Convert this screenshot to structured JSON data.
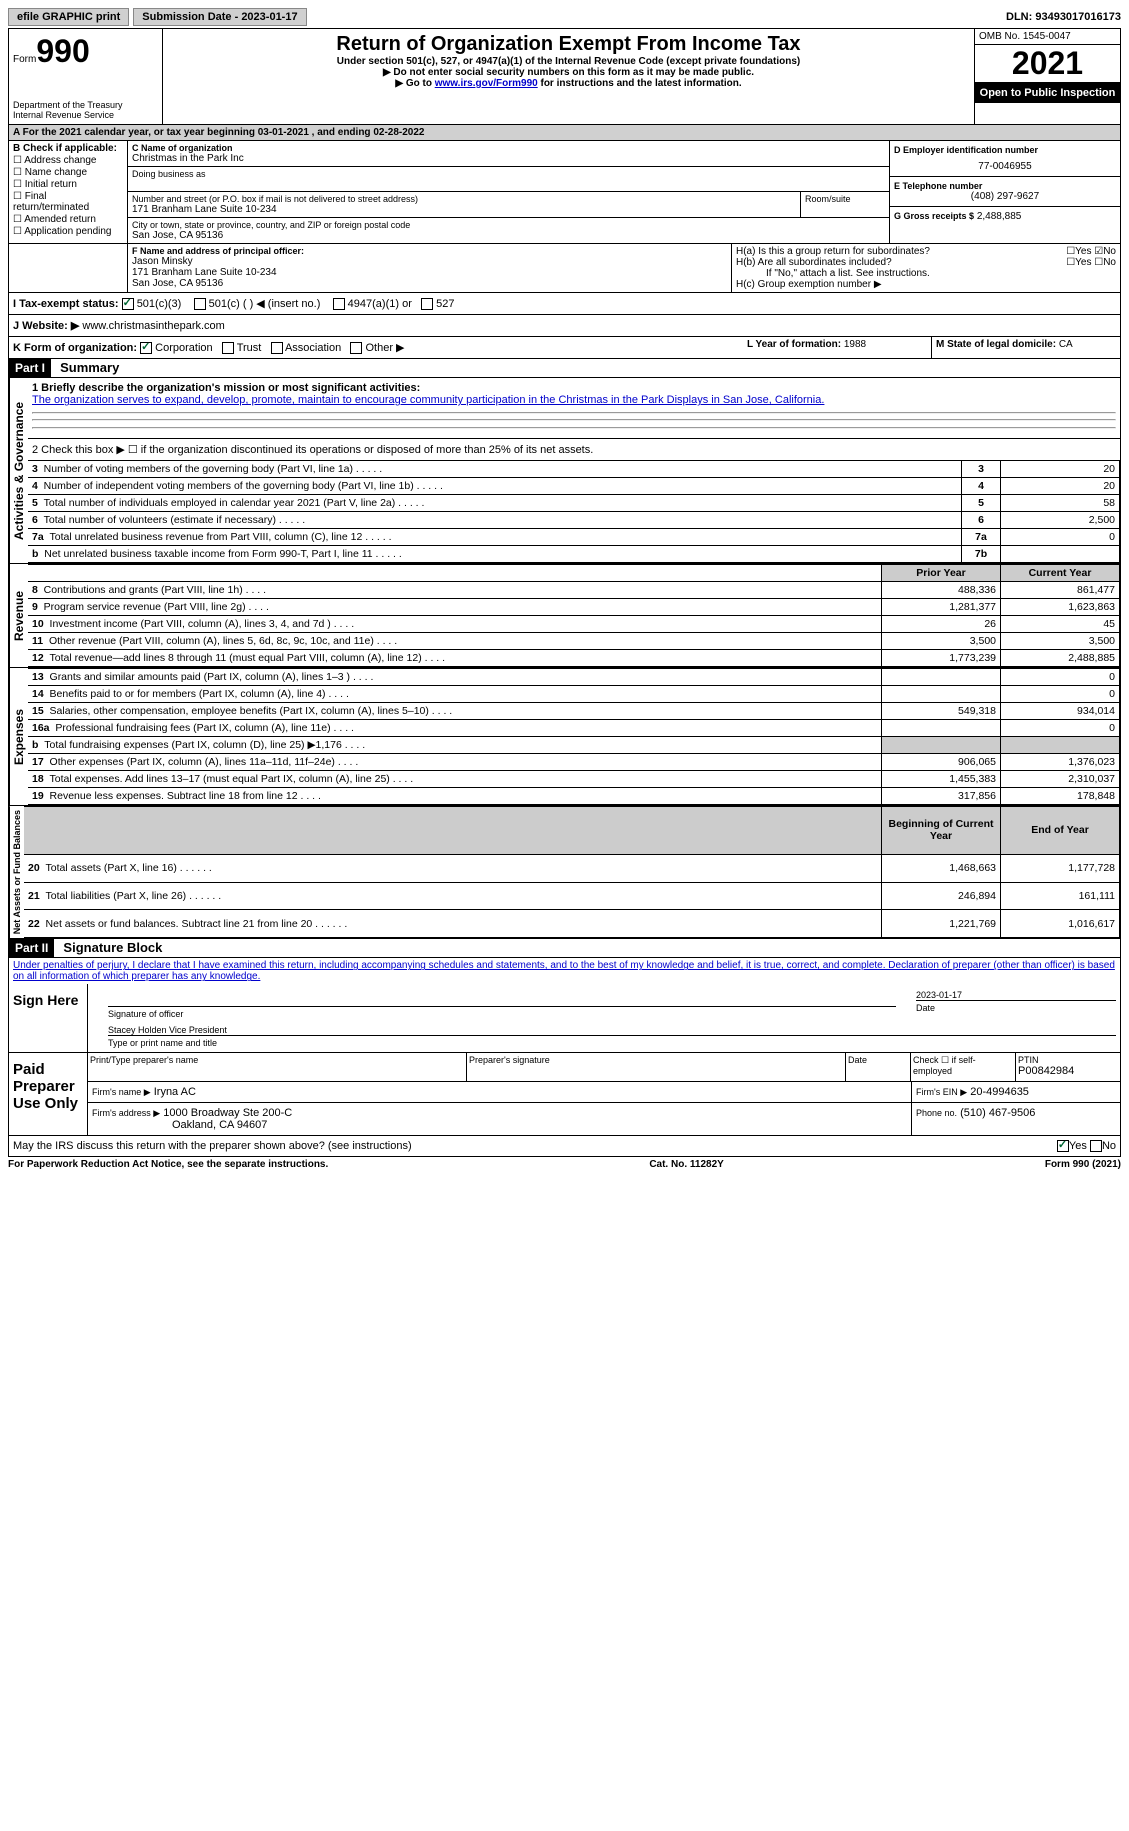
{
  "topbar": {
    "efile": "efile GRAPHIC print",
    "submission_label": "Submission Date - 2023-01-17",
    "dln_label": "DLN: 93493017016173"
  },
  "header": {
    "form_word": "Form",
    "form_num": "990",
    "dept": "Department of the Treasury",
    "irs": "Internal Revenue Service",
    "title": "Return of Organization Exempt From Income Tax",
    "subtitle": "Under section 501(c), 527, or 4947(a)(1) of the Internal Revenue Code (except private foundations)",
    "warn": "▶ Do not enter social security numbers on this form as it may be made public.",
    "goto_pre": "▶ Go to ",
    "goto_link": "www.irs.gov/Form990",
    "goto_post": " for instructions and the latest information.",
    "omb": "OMB No. 1545-0047",
    "year": "2021",
    "open": "Open to Public Inspection"
  },
  "line_a": "A For the 2021 calendar year, or tax year beginning 03-01-2021   , and ending 02-28-2022",
  "box_b": {
    "label": "B Check if applicable:",
    "items": [
      "Address change",
      "Name change",
      "Initial return",
      "Final return/terminated",
      "Amended return",
      "Application pending"
    ]
  },
  "box_c": {
    "name_label": "C Name of organization",
    "name": "Christmas in the Park Inc",
    "dba_label": "Doing business as",
    "addr_label": "Number and street (or P.O. box if mail is not delivered to street address)",
    "room_label": "Room/suite",
    "addr": "171 Branham Lane Suite 10-234",
    "city_label": "City or town, state or province, country, and ZIP or foreign postal code",
    "city": "San Jose, CA  95136"
  },
  "box_d": {
    "label": "D Employer identification number",
    "value": "77-0046955"
  },
  "box_e": {
    "label": "E Telephone number",
    "value": "(408) 297-9627"
  },
  "box_g": {
    "label": "G Gross receipts $",
    "value": "2,488,885"
  },
  "box_f": {
    "label": "F  Name and address of principal officer:",
    "name": "Jason Minsky",
    "addr1": "171 Branham Lane Suite 10-234",
    "addr2": "San Jose, CA  95136"
  },
  "box_h": {
    "ha": "H(a)  Is this a group return for subordinates?",
    "hb": "H(b)  Are all subordinates included?",
    "hb_note": "If \"No,\" attach a list. See instructions.",
    "hc": "H(c)  Group exemption number ▶"
  },
  "box_i": {
    "label": "I  Tax-exempt status:",
    "opts": [
      "501(c)(3)",
      "501(c) (  ) ◀ (insert no.)",
      "4947(a)(1) or",
      "527"
    ]
  },
  "box_j": {
    "label": "J  Website: ▶",
    "value": "www.christmasinthepark.com"
  },
  "box_k": {
    "label": "K Form of organization:",
    "opts": [
      "Corporation",
      "Trust",
      "Association",
      "Other ▶"
    ]
  },
  "box_l": {
    "label": "L Year of formation:",
    "value": "1988"
  },
  "box_m": {
    "label": "M State of legal domicile:",
    "value": "CA"
  },
  "part1": {
    "label": "Part I",
    "title": "Summary",
    "line1_label": "1  Briefly describe the organization's mission or most significant activities:",
    "line1_text": "The organization serves to expand, develop, promote, maintain to encourage community participation in the Christmas in the Park Displays in San Jose, California.",
    "line2": "2  Check this box ▶ ☐  if the organization discontinued its operations or disposed of more than 25% of its net assets.",
    "rows_gov": [
      {
        "n": "3",
        "t": "Number of voting members of the governing body (Part VI, line 1a)",
        "box": "3",
        "v": "20"
      },
      {
        "n": "4",
        "t": "Number of independent voting members of the governing body (Part VI, line 1b)",
        "box": "4",
        "v": "20"
      },
      {
        "n": "5",
        "t": "Total number of individuals employed in calendar year 2021 (Part V, line 2a)",
        "box": "5",
        "v": "58"
      },
      {
        "n": "6",
        "t": "Total number of volunteers (estimate if necessary)",
        "box": "6",
        "v": "2,500"
      },
      {
        "n": "7a",
        "t": "Total unrelated business revenue from Part VIII, column (C), line 12",
        "box": "7a",
        "v": "0"
      },
      {
        "n": "b",
        "t": "Net unrelated business taxable income from Form 990-T, Part I, line 11",
        "box": "7b",
        "v": ""
      }
    ],
    "col_prior": "Prior Year",
    "col_current": "Current Year",
    "rows_rev": [
      {
        "n": "8",
        "t": "Contributions and grants (Part VIII, line 1h)",
        "p": "488,336",
        "c": "861,477"
      },
      {
        "n": "9",
        "t": "Program service revenue (Part VIII, line 2g)",
        "p": "1,281,377",
        "c": "1,623,863"
      },
      {
        "n": "10",
        "t": "Investment income (Part VIII, column (A), lines 3, 4, and 7d )",
        "p": "26",
        "c": "45"
      },
      {
        "n": "11",
        "t": "Other revenue (Part VIII, column (A), lines 5, 6d, 8c, 9c, 10c, and 11e)",
        "p": "3,500",
        "c": "3,500"
      },
      {
        "n": "12",
        "t": "Total revenue—add lines 8 through 11 (must equal Part VIII, column (A), line 12)",
        "p": "1,773,239",
        "c": "2,488,885"
      }
    ],
    "rows_exp": [
      {
        "n": "13",
        "t": "Grants and similar amounts paid (Part IX, column (A), lines 1–3 )",
        "p": "",
        "c": "0"
      },
      {
        "n": "14",
        "t": "Benefits paid to or for members (Part IX, column (A), line 4)",
        "p": "",
        "c": "0"
      },
      {
        "n": "15",
        "t": "Salaries, other compensation, employee benefits (Part IX, column (A), lines 5–10)",
        "p": "549,318",
        "c": "934,014"
      },
      {
        "n": "16a",
        "t": "Professional fundraising fees (Part IX, column (A), line 11e)",
        "p": "",
        "c": "0"
      },
      {
        "n": "b",
        "t": "Total fundraising expenses (Part IX, column (D), line 25)  ▶1,176",
        "p": "shaded",
        "c": "shaded"
      },
      {
        "n": "17",
        "t": "Other expenses (Part IX, column (A), lines 11a–11d, 11f–24e)",
        "p": "906,065",
        "c": "1,376,023"
      },
      {
        "n": "18",
        "t": "Total expenses. Add lines 13–17 (must equal Part IX, column (A), line 25)",
        "p": "1,455,383",
        "c": "2,310,037"
      },
      {
        "n": "19",
        "t": "Revenue less expenses. Subtract line 18 from line 12",
        "p": "317,856",
        "c": "178,848"
      }
    ],
    "col_begin": "Beginning of Current Year",
    "col_end": "End of Year",
    "rows_net": [
      {
        "n": "20",
        "t": "Total assets (Part X, line 16)",
        "p": "1,468,663",
        "c": "1,177,728"
      },
      {
        "n": "21",
        "t": "Total liabilities (Part X, line 26)",
        "p": "246,894",
        "c": "161,111"
      },
      {
        "n": "22",
        "t": "Net assets or fund balances. Subtract line 21 from line 20",
        "p": "1,221,769",
        "c": "1,016,617"
      }
    ],
    "vert_gov": "Activities & Governance",
    "vert_rev": "Revenue",
    "vert_exp": "Expenses",
    "vert_net": "Net Assets or Fund Balances"
  },
  "part2": {
    "label": "Part II",
    "title": "Signature Block",
    "declaration": "Under penalties of perjury, I declare that I have examined this return, including accompanying schedules and statements, and to the best of my knowledge and belief, it is true, correct, and complete. Declaration of preparer (other than officer) is based on all information of which preparer has any knowledge.",
    "sign_here": "Sign Here",
    "sig_officer": "Signature of officer",
    "sig_date": "2023-01-17",
    "date_lbl": "Date",
    "officer_name": "Stacey Holden  Vice President",
    "name_title_lbl": "Type or print name and title",
    "paid_prep": "Paid Preparer Use Only",
    "prep_name_lbl": "Print/Type preparer's name",
    "prep_sig_lbl": "Preparer's signature",
    "check_self": "Check ☐ if self-employed",
    "ptin_lbl": "PTIN",
    "ptin": "P00842984",
    "firm_name_lbl": "Firm's name  ▶",
    "firm_name": "Iryna AC",
    "firm_ein_lbl": "Firm's EIN ▶",
    "firm_ein": "20-4994635",
    "firm_addr_lbl": "Firm's address ▶",
    "firm_addr": "1000 Broadway Ste 200-C",
    "firm_city": "Oakland, CA  94607",
    "phone_lbl": "Phone no.",
    "phone": "(510) 467-9506",
    "discuss": "May the IRS discuss this return with the preparer shown above? (see instructions)"
  },
  "footer": {
    "left": "For Paperwork Reduction Act Notice, see the separate instructions.",
    "mid": "Cat. No. 11282Y",
    "right": "Form 990 (2021)"
  }
}
